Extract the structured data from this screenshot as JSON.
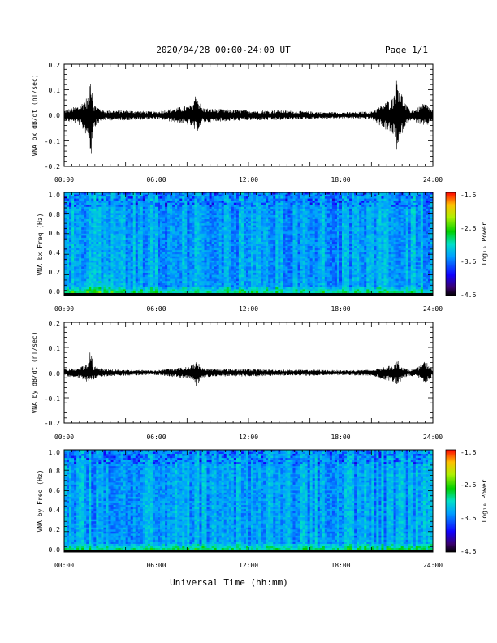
{
  "header": {
    "title": "2020/04/28  00:00-24:00 UT",
    "page": "Page 1/1"
  },
  "xlabel": "Universal Time (hh:mm)",
  "chart_data": [
    {
      "type": "line",
      "ylabel": "VNA bx dB/dt (nT/sec)",
      "xlim": [
        0,
        24
      ],
      "x_tick_labels": [
        "00:00",
        "06:00",
        "12:00",
        "18:00",
        "24:00"
      ],
      "ylim": [
        -0.2,
        0.2
      ],
      "y_tick_labels": [
        "0.2",
        "0.1",
        "0.0",
        "-0.1",
        "-0.2"
      ],
      "series": [
        {
          "envelope_hours": [
            0,
            1,
            1.6,
            1.75,
            1.9,
            2.5,
            4,
            6,
            8.2,
            8.6,
            9,
            10,
            12,
            14,
            16,
            18,
            20,
            21.4,
            21.7,
            22.1,
            22.5,
            23,
            23.5,
            24
          ],
          "envelope_upper": [
            0.02,
            0.04,
            0.08,
            0.2,
            0.05,
            0.02,
            0.02,
            0.015,
            0.04,
            0.09,
            0.03,
            0.025,
            0.02,
            0.02,
            0.015,
            0.012,
            0.015,
            0.07,
            0.16,
            0.06,
            0.02,
            0.03,
            0.05,
            0.02
          ],
          "envelope_lower": [
            -0.02,
            -0.04,
            -0.09,
            -0.17,
            -0.05,
            -0.02,
            -0.02,
            -0.015,
            -0.04,
            -0.07,
            -0.03,
            -0.025,
            -0.02,
            -0.02,
            -0.015,
            -0.012,
            -0.015,
            -0.08,
            -0.16,
            -0.05,
            -0.02,
            -0.03,
            -0.05,
            -0.02
          ]
        }
      ]
    },
    {
      "type": "heatmap",
      "ylabel": "VNA bx Freq (Hz)",
      "xlim": [
        0,
        24
      ],
      "x_tick_labels": [
        "00:00",
        "06:00",
        "12:00",
        "18:00",
        "24:00"
      ],
      "ylim": [
        0,
        1
      ],
      "y_tick_labels": [
        "1.0",
        "0.8",
        "0.6",
        "0.4",
        "0.2",
        "0.0"
      ],
      "colorbar": {
        "label": "Log₁₀ Power",
        "range": [
          -4.6,
          -1.6
        ],
        "tick_labels": [
          "-1.6",
          "-2.6",
          "-3.6",
          "-4.6"
        ]
      }
    },
    {
      "type": "line",
      "ylabel": "VNA by dB/dt (nT/sec)",
      "xlim": [
        0,
        24
      ],
      "x_tick_labels": [
        "00:00",
        "06:00",
        "12:00",
        "18:00",
        "24:00"
      ],
      "ylim": [
        -0.2,
        0.2
      ],
      "y_tick_labels": [
        "0.2",
        "0.1",
        "0.0",
        "-0.1",
        "-0.2"
      ],
      "series": [
        {
          "envelope_hours": [
            0,
            1,
            1.6,
            1.75,
            1.9,
            2.5,
            4,
            6,
            8.2,
            8.6,
            9,
            10,
            12,
            14,
            16,
            18,
            20,
            21.4,
            21.7,
            22.1,
            22.5,
            23,
            23.5,
            24
          ],
          "envelope_upper": [
            0.015,
            0.02,
            0.04,
            0.12,
            0.03,
            0.015,
            0.012,
            0.01,
            0.025,
            0.05,
            0.02,
            0.015,
            0.015,
            0.012,
            0.012,
            0.01,
            0.012,
            0.03,
            0.05,
            0.02,
            0.012,
            0.02,
            0.05,
            0.015
          ],
          "envelope_lower": [
            -0.015,
            -0.02,
            -0.04,
            -0.03,
            -0.03,
            -0.015,
            -0.012,
            -0.01,
            -0.025,
            -0.06,
            -0.02,
            -0.015,
            -0.015,
            -0.012,
            -0.012,
            -0.01,
            -0.012,
            -0.04,
            -0.05,
            -0.02,
            -0.012,
            -0.02,
            -0.04,
            -0.015
          ]
        }
      ]
    },
    {
      "type": "heatmap",
      "ylabel": "VNA by Freq (Hz)",
      "xlim": [
        0,
        24
      ],
      "x_tick_labels": [
        "00:00",
        "06:00",
        "12:00",
        "18:00",
        "24:00"
      ],
      "ylim": [
        0,
        1
      ],
      "y_tick_labels": [
        "1.0",
        "0.8",
        "0.6",
        "0.4",
        "0.2",
        "0.0"
      ],
      "colorbar": {
        "label": "Log₁₀ Power",
        "range": [
          -4.6,
          -1.6
        ],
        "tick_labels": [
          "-1.6",
          "-2.6",
          "-3.6",
          "-4.6"
        ]
      }
    }
  ]
}
